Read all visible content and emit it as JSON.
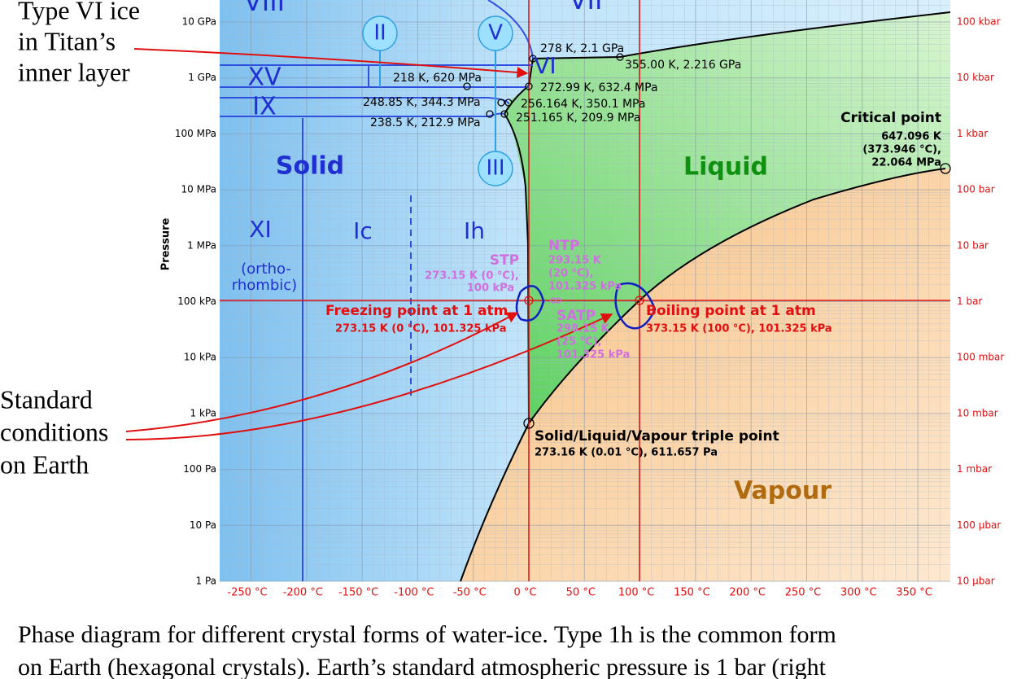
{
  "annotations": {
    "titan": [
      "Type VI ice",
      "in Titan’s",
      "inner layer"
    ],
    "earth": [
      "Standard",
      "conditions",
      " on Earth"
    ]
  },
  "axes": {
    "y_title": "Pressure",
    "y_left": [
      "10 GPa",
      "1 GPa",
      "100 MPa",
      "10 MPa",
      "1 MPa",
      "100 kPa",
      "10 kPa",
      "1 kPa",
      "100 Pa",
      "10 Pa",
      "1 Pa"
    ],
    "y_right": [
      "100 kbar",
      "10 kbar",
      "1 kbar",
      "100 bar",
      "10 bar",
      "1 bar",
      "100 mbar",
      "10 mbar",
      "1 mbar",
      "100 µbar",
      "10 µbar"
    ],
    "x": [
      "-250 °C",
      "-200 °C",
      "-150 °C",
      "-100 °C",
      "-50 °C",
      "0 °C",
      "50 °C",
      "100 °C",
      "150 °C",
      "200 °C",
      "250 °C",
      "300 °C",
      "350 °C"
    ]
  },
  "regions": {
    "viii": "VIII",
    "vii": "VII",
    "ii": "II",
    "v": "V",
    "iii": "III",
    "vi": "VI",
    "xv": "XV",
    "ix": "IX",
    "solid": "Solid",
    "liquid": "Liquid",
    "xi": "XI",
    "ic": "Ic",
    "ih": "Ih",
    "ortho": [
      "(ortho-",
      "rhombic)"
    ],
    "vapour": "Vapour"
  },
  "points": {
    "p1": "278 K, 2.1 GPa",
    "p2": "355.00 K, 2.216 GPa",
    "p3": "218 K, 620 MPa",
    "p4": "272.99 K, 632.4 MPa",
    "p5": "248.85 K, 344.3 MPa",
    "p6": "256.164 K, 350.1 MPa",
    "p7": "238.5 K, 212.9 MPa",
    "p8": "251.165 K, 209.9 MPa",
    "critical": [
      "Critical point",
      "647.096 K",
      "(373.946 °C),",
      "22.064 MPa"
    ],
    "triple": [
      "Solid/Liquid/Vapour triple point",
      "273.16 K (0.01 °C), 611.657 Pa"
    ],
    "freezing": [
      "Freezing point at 1 atm",
      "273.15 K (0 °C), 101.325 kPa"
    ],
    "boiling": [
      "Boiling point at 1 atm",
      "373.15 K (100 °C), 101.325 kPa"
    ],
    "stp": [
      "STP",
      "273.15 K (0 °C),",
      "100 kPa"
    ],
    "ntp": [
      "NTP",
      "293.15 K",
      "(20 °C),",
      "101.325 kPa"
    ],
    "satp": [
      "SATP",
      "298.15 K",
      "(25 °C),",
      "101.325 kPa"
    ]
  },
  "caption": [
    "Phase diagram for different crystal forms of water-ice. Type 1h is the common form",
    "on Earth (hexagonal crystals). Earth’s standard atmospheric pressure is 1 bar (right"
  ]
}
